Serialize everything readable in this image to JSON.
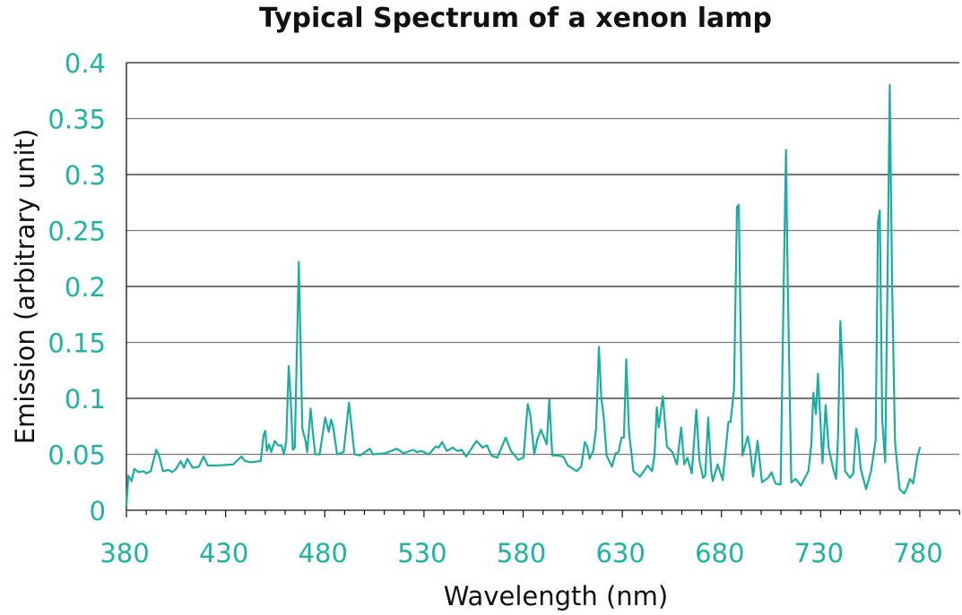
{
  "chart_data": {
    "type": "line",
    "title": "Typical Spectrum of a xenon lamp",
    "xlabel": "Wavelength (nm)",
    "ylabel": "Emission (arbitrary unit)",
    "xlim": [
      380,
      800
    ],
    "ylim": [
      0,
      0.4
    ],
    "xticks": [
      380,
      430,
      480,
      530,
      580,
      630,
      680,
      730,
      780
    ],
    "xtick_labels": [
      "380",
      "430",
      "480",
      "530",
      "580",
      "630",
      "680",
      "730",
      "780"
    ],
    "yticks": [
      0,
      0.05,
      0.1,
      0.15,
      0.2,
      0.25,
      0.3,
      0.35,
      0.4
    ],
    "ytick_labels": [
      "0",
      "0.05",
      "0.1",
      "0.15",
      "0.2",
      "0.25",
      "0.3",
      "0.35",
      "0.4"
    ],
    "grid": true,
    "line_color": "#1aaea2",
    "tick_color": "#1db3a6",
    "series": [
      {
        "name": "xenon lamp",
        "x": [
          380,
          381,
          382.6,
          384,
          386.3,
          388.6,
          390,
          392.3,
          395,
          396.3,
          398.4,
          401.4,
          403,
          405,
          407.4,
          409,
          410.7,
          413.4,
          416.5,
          418.9,
          421,
          426.2,
          433.8,
          438,
          439.8,
          442.5,
          447.7,
          449.1,
          450,
          450.8,
          451.9,
          453,
          454.8,
          456.4,
          458.2,
          459.4,
          460.6,
          461.8,
          462.7,
          463.9,
          464.9,
          466,
          466.9,
          467.8,
          468.7,
          470.3,
          471.1,
          472.9,
          473.8,
          475.2,
          477.4,
          480.2,
          482,
          483.2,
          484.2,
          486.2,
          489.5,
          492.2,
          493.2,
          495,
          497.8,
          502.7,
          504.3,
          510.6,
          516.3,
          519.7,
          524.6,
          526.4,
          528.7,
          532.5,
          535.9,
          537.4,
          539.2,
          541.5,
          544.5,
          546.8,
          549,
          551.3,
          556.5,
          559.5,
          561.8,
          564,
          567,
          571.2,
          573.9,
          577.6,
          580.2,
          582.3,
          583.6,
          585.6,
          587.1,
          588.9,
          591.9,
          593.2,
          594.7,
          597.2,
          600.2,
          602.5,
          607,
          609.3,
          611.1,
          612.3,
          613.5,
          615.3,
          616.8,
          618.2,
          619.4,
          620.6,
          622.1,
          624.8,
          626.6,
          628.1,
          629.6,
          630.8,
          632,
          633.4,
          635.6,
          638.9,
          642.8,
          645,
          646.2,
          647.4,
          648.4,
          650.4,
          652.5,
          655.2,
          657.5,
          659.7,
          661.2,
          662.8,
          665,
          667.3,
          668.8,
          670.7,
          671.8,
          673.3,
          674.8,
          675.6,
          678.1,
          680.6,
          683.5,
          684.6,
          686.3,
          687.8,
          688.7,
          690.6,
          693.2,
          694.4,
          695.9,
          698.2,
          700.4,
          703.5,
          705.2,
          707.2,
          709.8,
          711.4,
          712.5,
          713.4,
          715.2,
          717.4,
          720,
          723.8,
          725.3,
          726.3,
          727.6,
          728.6,
          729.8,
          730.9,
          732.5,
          734,
          736.3,
          737.8,
          738.8,
          739.9,
          741.1,
          742.3,
          744.9,
          746.4,
          747.9,
          748.9,
          750.2,
          752.9,
          755.4,
          757.7,
          758.9,
          759.8,
          761,
          762.5,
          763.7,
          764.8,
          766,
          767.5,
          769.8,
          772.1,
          773.5,
          775,
          776.6,
          778.8,
          780,
          780.3
        ],
        "y": [
          0.004,
          0.031,
          0.026,
          0.037,
          0.034,
          0.035,
          0.033,
          0.035,
          0.054,
          0.05,
          0.035,
          0.036,
          0.034,
          0.037,
          0.044,
          0.038,
          0.046,
          0.038,
          0.039,
          0.048,
          0.04,
          0.04,
          0.041,
          0.048,
          0.044,
          0.043,
          0.044,
          0.067,
          0.071,
          0.053,
          0.059,
          0.052,
          0.062,
          0.058,
          0.058,
          0.05,
          0.062,
          0.129,
          0.104,
          0.054,
          0.056,
          0.15,
          0.222,
          0.147,
          0.073,
          0.062,
          0.052,
          0.091,
          0.073,
          0.05,
          0.05,
          0.083,
          0.07,
          0.081,
          0.075,
          0.05,
          0.052,
          0.096,
          0.079,
          0.05,
          0.049,
          0.055,
          0.05,
          0.051,
          0.055,
          0.051,
          0.054,
          0.052,
          0.053,
          0.05,
          0.057,
          0.056,
          0.061,
          0.053,
          0.056,
          0.053,
          0.054,
          0.048,
          0.062,
          0.056,
          0.058,
          0.049,
          0.047,
          0.065,
          0.053,
          0.045,
          0.047,
          0.095,
          0.085,
          0.05,
          0.063,
          0.072,
          0.059,
          0.099,
          0.049,
          0.049,
          0.048,
          0.04,
          0.035,
          0.039,
          0.061,
          0.057,
          0.046,
          0.053,
          0.073,
          0.146,
          0.1,
          0.084,
          0.049,
          0.039,
          0.051,
          0.052,
          0.065,
          0.065,
          0.135,
          0.07,
          0.035,
          0.03,
          0.04,
          0.035,
          0.049,
          0.092,
          0.074,
          0.102,
          0.057,
          0.052,
          0.041,
          0.074,
          0.041,
          0.047,
          0.033,
          0.09,
          0.045,
          0.029,
          0.031,
          0.083,
          0.035,
          0.026,
          0.041,
          0.027,
          0.079,
          0.079,
          0.108,
          0.271,
          0.273,
          0.049,
          0.066,
          0.055,
          0.03,
          0.062,
          0.025,
          0.029,
          0.034,
          0.024,
          0.023,
          0.205,
          0.322,
          0.205,
          0.025,
          0.028,
          0.022,
          0.035,
          0.059,
          0.105,
          0.086,
          0.122,
          0.083,
          0.042,
          0.094,
          0.056,
          0.037,
          0.028,
          0.068,
          0.169,
          0.123,
          0.035,
          0.029,
          0.033,
          0.073,
          0.063,
          0.037,
          0.019,
          0.035,
          0.063,
          0.258,
          0.268,
          0.081,
          0.043,
          0.204,
          0.38,
          0.204,
          0.061,
          0.019,
          0.015,
          0.02,
          0.028,
          0.024,
          0.048,
          0.056,
          0.055
        ]
      }
    ]
  }
}
